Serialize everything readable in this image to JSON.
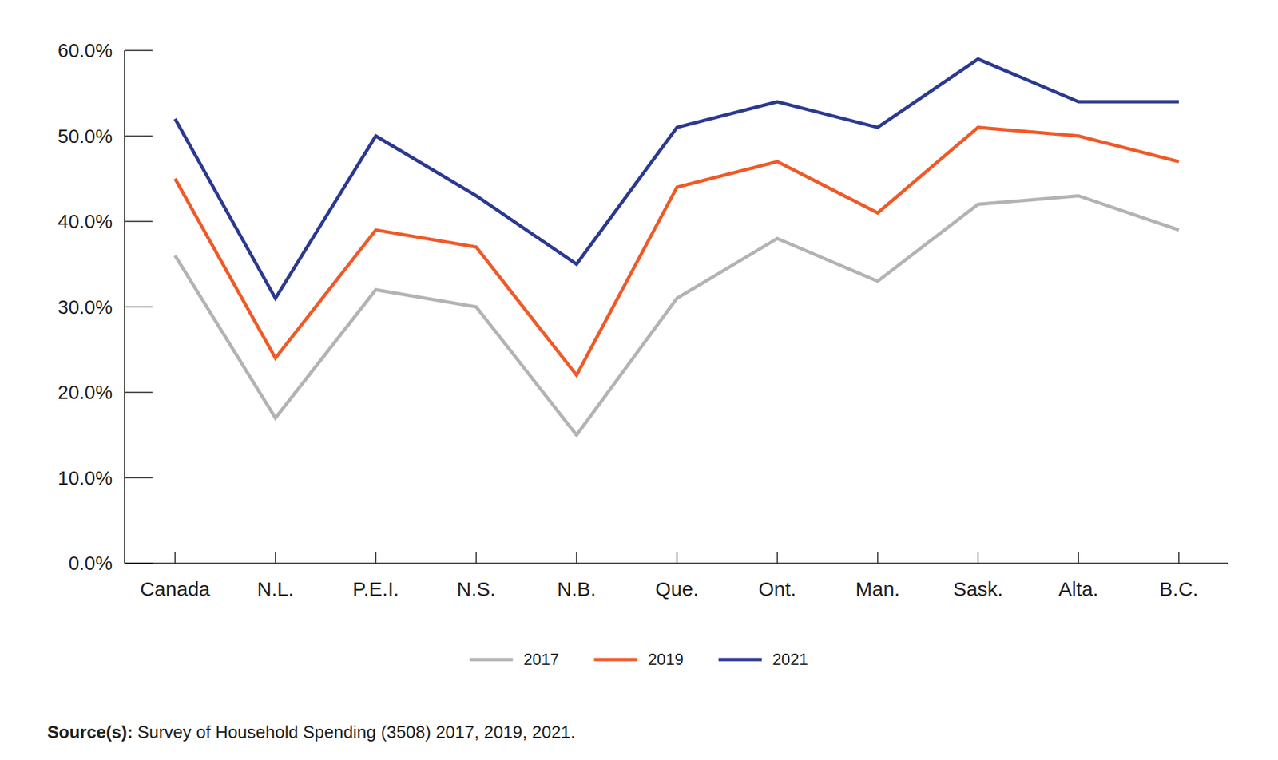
{
  "chart_data": {
    "type": "line",
    "categories": [
      "Canada",
      "N.L.",
      "P.E.I.",
      "N.S.",
      "N.B.",
      "Que.",
      "Ont.",
      "Man.",
      "Sask.",
      "Alta.",
      "B.C."
    ],
    "series": [
      {
        "name": "2017",
        "color": "#b3b3b3",
        "values": [
          36,
          17,
          32,
          30,
          15,
          31,
          38,
          33,
          42,
          43,
          39
        ]
      },
      {
        "name": "2019",
        "color": "#ef5a28",
        "values": [
          45,
          24,
          39,
          37,
          22,
          44,
          47,
          41,
          51,
          50,
          47
        ]
      },
      {
        "name": "2021",
        "color": "#2b3990",
        "values": [
          52,
          31,
          50,
          43,
          35,
          51,
          54,
          51,
          59,
          54,
          54
        ]
      }
    ],
    "ylim": [
      0,
      60
    ],
    "yticks": [
      {
        "value": 0,
        "label": "0.0%"
      },
      {
        "value": 10,
        "label": "10.0%"
      },
      {
        "value": 20,
        "label": "20.0%"
      },
      {
        "value": 30,
        "label": "30.0%"
      },
      {
        "value": 40,
        "label": "40.0%"
      },
      {
        "value": 50,
        "label": "50.0%"
      },
      {
        "value": 60,
        "label": "60.0%"
      }
    ],
    "grid": false,
    "legend": "bottom",
    "source_label": "Source(s):",
    "source": "Survey of Household Spending (3508) 2017, 2019, 2021."
  }
}
